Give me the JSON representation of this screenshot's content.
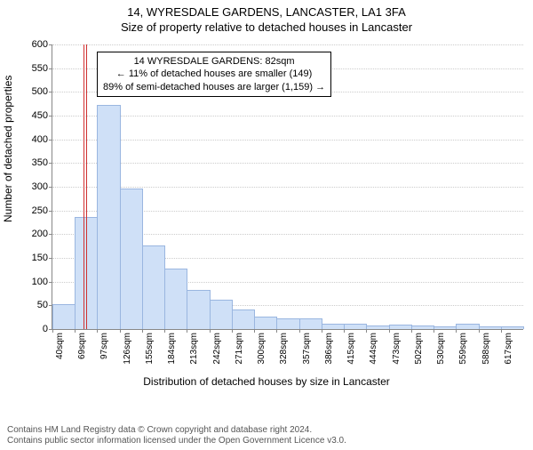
{
  "title_line1": "14, WYRESDALE GARDENS, LANCASTER, LA1 3FA",
  "title_line2": "Size of property relative to detached houses in Lancaster",
  "ylabel": "Number of detached properties",
  "xlabel": "Distribution of detached houses by size in Lancaster",
  "footer_line1": "Contains HM Land Registry data © Crown copyright and database right 2024.",
  "footer_line2": "Contains public sector information licensed under the Open Government Licence v3.0.",
  "chart": {
    "type": "histogram",
    "ylim": [
      0,
      600
    ],
    "ytick_step": 50,
    "bar_fill": "#cfe0f7",
    "bar_stroke": "#9ab6e0",
    "background_color": "#ffffff",
    "grid_color": "#cccccc",
    "axis_color": "#888888",
    "marker_color": "#d03030",
    "data_x_start": 40,
    "data_x_step": 29,
    "bar_count": 21,
    "values": [
      50,
      235,
      470,
      295,
      175,
      125,
      80,
      60,
      40,
      25,
      20,
      20,
      10,
      10,
      5,
      8,
      5,
      4,
      10,
      4,
      4
    ],
    "x_tick_labels": [
      "40sqm",
      "69sqm",
      "97sqm",
      "126sqm",
      "155sqm",
      "184sqm",
      "213sqm",
      "242sqm",
      "271sqm",
      "300sqm",
      "328sqm",
      "357sqm",
      "386sqm",
      "415sqm",
      "444sqm",
      "473sqm",
      "502sqm",
      "530sqm",
      "559sqm",
      "588sqm",
      "617sqm"
    ],
    "marker_value": 82,
    "info_box": {
      "line1": "14 WYRESDALE GARDENS: 82sqm",
      "line2": "← 11% of detached houses are smaller (149)",
      "line3": "89% of semi-detached houses are larger (1,159) →"
    },
    "title_fontsize": 13,
    "label_fontsize": 12,
    "tick_fontsize": 11,
    "infobox_fontsize": 11
  }
}
